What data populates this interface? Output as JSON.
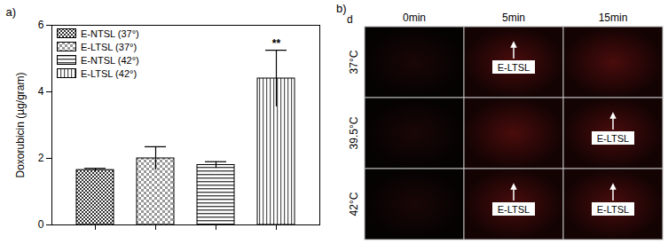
{
  "chart_data": {
    "type": "bar",
    "panel_label": "a)",
    "ylabel": "Doxorubicin (µg/gram)",
    "categories": [
      null
    ],
    "series": [
      {
        "name": "E-NTSL (37°)",
        "color": "#333333",
        "values": [
          1.65
        ],
        "errors": [
          0.05
        ]
      },
      {
        "name": "E-LTSL (37°)",
        "color": "#999999",
        "values": [
          2.0
        ],
        "errors": [
          0.35
        ]
      },
      {
        "name": "E-NTSL (42°)",
        "color": "#444444",
        "values": [
          1.8
        ],
        "errors": [
          0.1
        ]
      },
      {
        "name": "E-LTSL (42°)",
        "color": "#555555",
        "values": [
          4.4
        ],
        "errors": [
          0.85
        ]
      }
    ],
    "ylim": [
      0,
      6
    ],
    "yticks": [
      0,
      2,
      4,
      6
    ],
    "legend": "top-left",
    "annotations": [
      {
        "series": "E-LTSL (42°)",
        "text": "**"
      }
    ]
  },
  "image_panel": {
    "panel_label": "b)",
    "corner_label": "d",
    "columns": [
      "0min",
      "5min",
      "15min"
    ],
    "rows": [
      "37°C",
      "39.5°C",
      "42°C"
    ],
    "markers": [
      {
        "row": 0,
        "col": 1,
        "text": "E-LTSL"
      },
      {
        "row": 1,
        "col": 2,
        "text": "E-LTSL"
      },
      {
        "row": 2,
        "col": 1,
        "text": "E-LTSL"
      },
      {
        "row": 2,
        "col": 2,
        "text": "E-LTSL"
      }
    ]
  }
}
